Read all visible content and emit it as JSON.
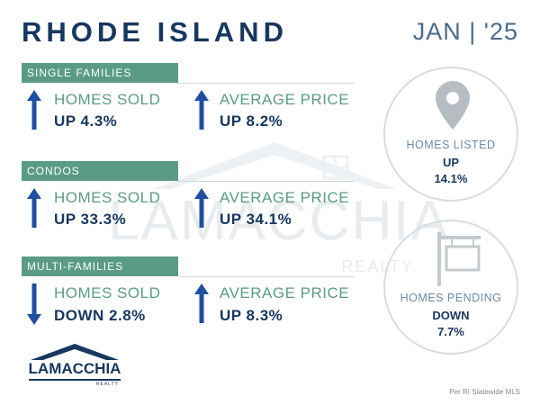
{
  "header": {
    "title": "RHODE ISLAND",
    "date": "JAN | '25"
  },
  "sections": [
    {
      "name": "SINGLE FAMILIES",
      "homes_sold": {
        "label": "HOMES SOLD",
        "value": "UP 4.3%",
        "direction": "up"
      },
      "average_price": {
        "label": "AVERAGE PRICE",
        "value": "UP 8.2%",
        "direction": "up"
      }
    },
    {
      "name": "CONDOS",
      "homes_sold": {
        "label": "HOMES SOLD",
        "value": "UP 33.3%",
        "direction": "up"
      },
      "average_price": {
        "label": "AVERAGE PRICE",
        "value": "UP 34.1%",
        "direction": "up"
      }
    },
    {
      "name": "MULTI-FAMILIES",
      "homes_sold": {
        "label": "HOMES SOLD",
        "value": "DOWN 2.8%",
        "direction": "down"
      },
      "average_price": {
        "label": "AVERAGE PRICE",
        "value": "UP 8.3%",
        "direction": "up"
      }
    }
  ],
  "listed": {
    "label": "HOMES LISTED",
    "direction": "UP",
    "value": "14.1%",
    "icon": "map-pin-icon"
  },
  "pending": {
    "label": "HOMES PENDING",
    "direction": "DOWN",
    "value": "7.7%",
    "icon": "for-sale-sign-icon"
  },
  "logo": {
    "name": "LAMACCHIA",
    "sub": "REALTY"
  },
  "watermark": {
    "name": "LAMACCHIA",
    "sub": "REALTY"
  },
  "footer": {
    "source": "Per RI Statewide MLS"
  },
  "colors": {
    "navy": "#17375e",
    "green": "#5a9c83",
    "arrow_blue": "#1f4fa3"
  }
}
